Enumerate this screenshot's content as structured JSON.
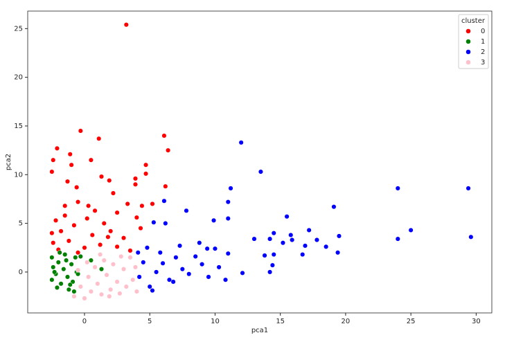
{
  "chart_data": {
    "type": "scatter",
    "xlabel": "pca1",
    "ylabel": "pca2",
    "xlim": [
      -4.35,
      31.2
    ],
    "ylim": [
      -4.2,
      26.8
    ],
    "xticks": [
      0,
      5,
      10,
      15,
      20,
      25,
      30
    ],
    "yticks": [
      0,
      5,
      10,
      15,
      20,
      25
    ],
    "legend_title": "cluster",
    "legend": "upper right",
    "series": [
      {
        "name": "0",
        "color": "#ff0000",
        "x": [
          3.2,
          -0.3,
          6.1,
          1.1,
          6.4,
          -2.1,
          -1.1,
          -2.4,
          0.5,
          4.7,
          -1.0,
          -2.5,
          4.7,
          3.9,
          1.3,
          1.9,
          -1.3,
          6.2,
          3.9,
          -0.6,
          2.2,
          5.2,
          3.3,
          4.4,
          0.8,
          2.5,
          -2.2,
          -1.5,
          -0.5,
          0.2,
          1.5,
          -1.8,
          -0.8,
          0.6,
          2.0,
          3.0,
          4.3,
          -2.4,
          -1.2,
          0.0,
          1.2,
          2.5,
          3.5,
          -0.5,
          -2.0,
          1.8,
          -1.5,
          0.3,
          4.0,
          -2.5
        ],
        "values": [
          25.4,
          14.5,
          14.0,
          13.7,
          12.5,
          12.7,
          12.1,
          11.5,
          11.5,
          11.0,
          11.0,
          10.3,
          10.1,
          9.6,
          9.8,
          9.4,
          9.3,
          8.8,
          9.0,
          8.7,
          8.1,
          7.0,
          7.0,
          6.8,
          6.3,
          6.1,
          5.3,
          6.8,
          7.2,
          5.5,
          5.0,
          4.2,
          4.8,
          3.8,
          4.2,
          3.5,
          4.5,
          3.0,
          3.2,
          2.5,
          2.8,
          2.6,
          2.2,
          2.0,
          2.3,
          3.6,
          5.8,
          6.8,
          5.6,
          4.0
        ]
      },
      {
        "name": "1",
        "color": "#008000",
        "x": [
          -2.5,
          -2.4,
          -2.5,
          -2.2,
          -2.0,
          -1.8,
          -1.6,
          -1.5,
          -1.3,
          -1.2,
          -1.0,
          -0.9,
          -0.7,
          -0.6,
          -0.8,
          -2.1,
          -1.9,
          -1.4,
          -2.3,
          -1.1,
          1.3,
          0.5,
          -0.3,
          -0.5
        ],
        "values": [
          1.5,
          0.5,
          -0.8,
          -0.2,
          1.0,
          -1.2,
          0.3,
          1.8,
          -0.5,
          -1.8,
          0.8,
          -1.0,
          1.5,
          0.0,
          -2.0,
          -1.6,
          2.0,
          1.2,
          0.0,
          -1.3,
          0.3,
          1.2,
          1.6,
          -0.2
        ]
      },
      {
        "name": "2",
        "color": "#0000ff",
        "x": [
          12.0,
          13.5,
          24.0,
          29.4,
          11.2,
          6.1,
          11.0,
          19.1,
          7.8,
          15.5,
          11.0,
          9.9,
          5.3,
          6.2,
          25.0,
          17.2,
          29.6,
          14.5,
          19.5,
          15.8,
          13.0,
          14.2,
          24.0,
          17.8,
          15.9,
          15.2,
          18.5,
          16.9,
          10.0,
          8.8,
          9.4,
          7.3,
          13.8,
          16.7,
          19.4,
          14.5,
          11.0,
          12.1,
          14.2,
          14.4,
          10.8,
          10.3,
          5.0,
          4.5,
          5.5,
          6.5,
          7.0,
          8.0,
          9.0,
          4.2,
          5.8,
          6.8,
          8.5,
          9.5,
          4.8,
          5.2,
          7.5,
          6.0,
          4.1
        ],
        "values": [
          13.3,
          10.3,
          8.6,
          8.6,
          8.6,
          7.3,
          7.2,
          6.7,
          6.3,
          5.7,
          5.5,
          5.3,
          5.1,
          5.0,
          4.3,
          4.3,
          3.6,
          4.0,
          3.7,
          3.8,
          3.4,
          3.4,
          3.4,
          3.3,
          3.3,
          3.0,
          2.6,
          2.7,
          2.4,
          3.0,
          2.4,
          2.7,
          1.7,
          1.8,
          2.0,
          1.8,
          1.9,
          -0.1,
          0.0,
          0.7,
          -0.8,
          0.5,
          -1.5,
          1.0,
          0.0,
          -0.8,
          1.5,
          -0.2,
          0.8,
          -0.5,
          2.0,
          -1.0,
          1.6,
          -0.5,
          2.5,
          -1.9,
          0.3,
          0.9,
          2.0
        ]
      },
      {
        "name": "3",
        "color": "#ffc0cb",
        "x": [
          -0.8,
          -0.3,
          0,
          0.3,
          0.5,
          0.8,
          1.0,
          1.3,
          1.5,
          1.7,
          2.0,
          2.2,
          2.5,
          2.7,
          3.0,
          3.2,
          3.5,
          3.7,
          4.0,
          0.2,
          -0.5,
          1.2,
          2.8,
          3.9,
          1.9
        ],
        "values": [
          -2.5,
          -1.5,
          -2.7,
          -0.5,
          -2.0,
          0.5,
          -1.2,
          -2.3,
          1.2,
          -0.3,
          -1.8,
          0.8,
          -1.0,
          -2.2,
          0.3,
          -1.5,
          1.5,
          -0.8,
          -2.0,
          1.0,
          0.2,
          1.8,
          1.6,
          0.5,
          -2.5
        ]
      }
    ]
  }
}
